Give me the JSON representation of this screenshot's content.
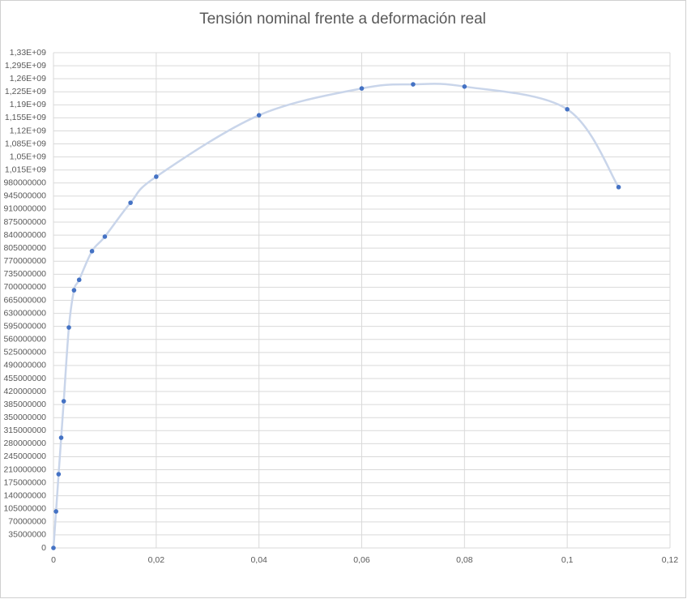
{
  "chart_data": {
    "type": "scatter",
    "title": "Tensión nominal frente a deformación real",
    "x": [
      0,
      0.0005,
      0.001,
      0.0015,
      0.002,
      0.003,
      0.004,
      0.005,
      0.0075,
      0.01,
      0.015,
      0.02,
      0.04,
      0.06,
      0.07,
      0.08,
      0.1,
      0.11
    ],
    "values": [
      0,
      98000000,
      198000000,
      296000000,
      394000000,
      592000000,
      692000000,
      720000000,
      797000000,
      836000000,
      927000000,
      997000000,
      1162000000,
      1234000000,
      1245000000,
      1239000000,
      1178000000,
      969000000
    ],
    "color": "#4472c4",
    "line_color": "#c9d5ea",
    "smooth": true,
    "grid": true,
    "xlim": [
      0,
      0.12
    ],
    "xticks": [
      0,
      {
        "value": 0.02,
        "label": "0,02"
      },
      {
        "value": 0.04,
        "label": "0,04"
      },
      {
        "value": 0.06,
        "label": "0,06"
      },
      {
        "value": 0.08,
        "label": "0,08"
      },
      {
        "value": 0.1,
        "label": "0,1"
      },
      {
        "value": 0.12,
        "label": "0,12"
      }
    ],
    "ylim": [
      0,
      1330000000
    ],
    "yticks": [
      0,
      35000000,
      70000000,
      105000000,
      140000000,
      175000000,
      210000000,
      245000000,
      280000000,
      315000000,
      350000000,
      385000000,
      420000000,
      455000000,
      490000000,
      525000000,
      560000000,
      595000000,
      630000000,
      665000000,
      700000000,
      735000000,
      770000000,
      805000000,
      840000000,
      875000000,
      910000000,
      945000000,
      980000000,
      {
        "value": 1015000000,
        "label": "1,015E+09"
      },
      {
        "value": 1050000000,
        "label": "1,05E+09"
      },
      {
        "value": 1085000000,
        "label": "1,085E+09"
      },
      {
        "value": 1120000000,
        "label": "1,12E+09"
      },
      {
        "value": 1155000000,
        "label": "1,155E+09"
      },
      {
        "value": 1190000000,
        "label": "1,19E+09"
      },
      {
        "value": 1225000000,
        "label": "1,225E+09"
      },
      {
        "value": 1260000000,
        "label": "1,26E+09"
      },
      {
        "value": 1295000000,
        "label": "1,295E+09"
      },
      {
        "value": 1330000000,
        "label": "1,33E+09"
      }
    ]
  }
}
